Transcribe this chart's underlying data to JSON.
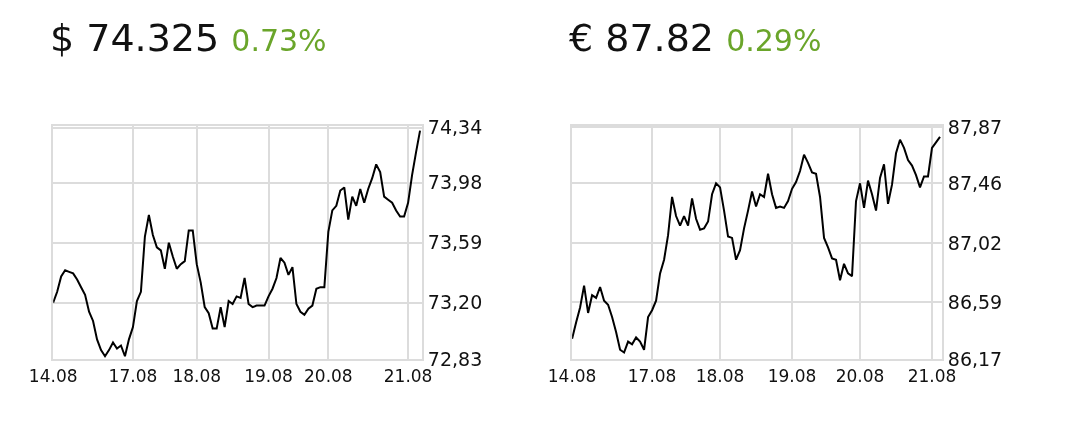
{
  "chart_data": [
    {
      "type": "line",
      "title": "$ 74.325",
      "subtitle": "0.73%",
      "grid": true,
      "categories": [
        "14.08",
        null,
        null,
        null,
        null,
        null,
        null,
        null,
        null,
        null,
        null,
        null,
        null,
        null,
        null,
        null,
        null,
        null,
        null,
        null,
        "17.08",
        null,
        null,
        null,
        null,
        null,
        null,
        null,
        null,
        null,
        null,
        null,
        null,
        null,
        null,
        null,
        "18.08",
        null,
        null,
        null,
        null,
        null,
        null,
        null,
        null,
        null,
        null,
        null,
        null,
        null,
        null,
        null,
        null,
        null,
        "19.08",
        null,
        null,
        null,
        null,
        null,
        null,
        null,
        null,
        null,
        null,
        null,
        null,
        null,
        null,
        "20.08",
        null,
        null,
        null,
        null,
        null,
        null,
        null,
        null,
        null,
        null,
        null,
        null,
        null,
        null,
        null,
        null,
        null,
        null,
        null,
        "21.08",
        null,
        null,
        null
      ],
      "ylim": [
        72.83,
        74.35
      ],
      "yticks": [
        {
          "value": 72.83,
          "label": "72,83"
        },
        {
          "value": 73.2,
          "label": "73,20"
        },
        {
          "value": 73.59,
          "label": "73,59"
        },
        {
          "value": 73.98,
          "label": "73,98"
        },
        {
          "value": 74.34,
          "label": "74,34"
        }
      ],
      "series": [
        {
          "color": "#000000",
          "values": [
            73.2,
            73.27,
            73.37,
            73.41,
            73.4,
            73.39,
            73.35,
            73.3,
            73.25,
            73.14,
            73.08,
            72.96,
            72.89,
            72.85,
            72.89,
            72.94,
            72.9,
            72.92,
            72.85,
            72.96,
            73.04,
            73.21,
            73.27,
            73.63,
            73.77,
            73.64,
            73.56,
            73.54,
            73.42,
            73.59,
            73.5,
            73.42,
            73.45,
            73.47,
            73.67,
            73.67,
            73.45,
            73.33,
            73.17,
            73.13,
            73.03,
            73.03,
            73.17,
            73.04,
            73.21,
            73.19,
            73.24,
            73.23,
            73.36,
            73.19,
            73.17,
            73.18,
            73.18,
            73.18,
            73.24,
            73.29,
            73.36,
            73.49,
            73.46,
            73.38,
            73.43,
            73.19,
            73.14,
            73.12,
            73.16,
            73.18,
            73.29,
            73.3,
            73.3,
            73.66,
            73.8,
            73.83,
            73.93,
            73.95,
            73.74,
            73.89,
            73.83,
            73.94,
            73.85,
            73.94,
            74.01,
            74.1,
            74.05,
            73.89,
            73.87,
            73.85,
            73.8,
            73.76,
            73.76,
            73.85,
            74.03,
            74.18,
            74.32
          ]
        }
      ]
    },
    {
      "type": "line",
      "title": "€ 87.82",
      "subtitle": "0.29%",
      "grid": true,
      "categories": [
        "14.08",
        null,
        null,
        null,
        null,
        null,
        null,
        null,
        null,
        null,
        null,
        null,
        null,
        null,
        null,
        null,
        null,
        null,
        null,
        null,
        "17.08",
        null,
        null,
        null,
        null,
        null,
        null,
        null,
        null,
        null,
        null,
        null,
        null,
        null,
        null,
        null,
        null,
        "18.08",
        null,
        null,
        null,
        null,
        null,
        null,
        null,
        null,
        null,
        null,
        null,
        null,
        null,
        null,
        null,
        null,
        null,
        "19.08",
        null,
        null,
        null,
        null,
        null,
        null,
        null,
        null,
        null,
        null,
        null,
        null,
        null,
        null,
        null,
        null,
        "20.08",
        null,
        null,
        null,
        null,
        null,
        null,
        null,
        null,
        null,
        null,
        null,
        null,
        null,
        null,
        null,
        null,
        null,
        "21.08",
        null,
        null
      ],
      "ylim": [
        86.17,
        87.88
      ],
      "yticks": [
        {
          "value": 86.17,
          "label": "86,17"
        },
        {
          "value": 86.59,
          "label": "86,59"
        },
        {
          "value": 87.02,
          "label": "87,02"
        },
        {
          "value": 87.46,
          "label": "87,46"
        },
        {
          "value": 87.87,
          "label": "87,87"
        }
      ],
      "series": [
        {
          "color": "#000000",
          "values": [
            86.32,
            86.44,
            86.55,
            86.71,
            86.51,
            86.64,
            86.62,
            86.7,
            86.6,
            86.57,
            86.48,
            86.37,
            86.24,
            86.22,
            86.3,
            86.28,
            86.33,
            86.3,
            86.24,
            86.48,
            86.53,
            86.6,
            86.8,
            86.9,
            87.08,
            87.36,
            87.22,
            87.15,
            87.22,
            87.15,
            87.35,
            87.2,
            87.12,
            87.13,
            87.18,
            87.38,
            87.46,
            87.43,
            87.26,
            87.07,
            87.06,
            86.9,
            86.97,
            87.13,
            87.26,
            87.4,
            87.29,
            87.38,
            87.36,
            87.53,
            87.38,
            87.28,
            87.29,
            87.28,
            87.33,
            87.42,
            87.47,
            87.55,
            87.67,
            87.61,
            87.54,
            87.53,
            87.36,
            87.06,
            86.99,
            86.91,
            86.9,
            86.75,
            86.87,
            86.8,
            86.78,
            87.33,
            87.46,
            87.28,
            87.48,
            87.38,
            87.26,
            87.5,
            87.6,
            87.31,
            87.45,
            87.68,
            87.78,
            87.72,
            87.63,
            87.59,
            87.52,
            87.43,
            87.51,
            87.51,
            87.72,
            87.76,
            87.8
          ]
        }
      ]
    }
  ]
}
